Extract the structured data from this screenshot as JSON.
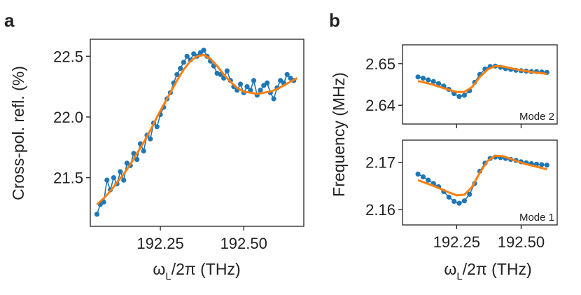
{
  "chart_data": [
    {
      "panel": "a",
      "type": "line",
      "xlabel_main": "ω",
      "xlabel_sub": "L",
      "xlabel_rest": "/2π (THz)",
      "ylabel": "Cross-pol. refl. (%)",
      "xlim": [
        192.04,
        192.68
      ],
      "ylim": [
        21.1,
        22.64
      ],
      "xticks": [
        192.25,
        192.5
      ],
      "xtick_labels": [
        "192.25",
        "192.50"
      ],
      "yticks": [
        21.5,
        22.0,
        22.5
      ],
      "ytick_labels": [
        "21.5",
        "22.0",
        "22.5"
      ],
      "series": [
        {
          "kind": "data",
          "color": "#1f77b4",
          "x": [
            192.06,
            192.07,
            192.08,
            192.09,
            192.1,
            192.11,
            192.12,
            192.13,
            192.14,
            192.15,
            192.16,
            192.17,
            192.18,
            192.19,
            192.2,
            192.21,
            192.22,
            192.23,
            192.24,
            192.25,
            192.26,
            192.27,
            192.28,
            192.29,
            192.3,
            192.31,
            192.32,
            192.33,
            192.34,
            192.35,
            192.36,
            192.37,
            192.38,
            192.39,
            192.4,
            192.41,
            192.42,
            192.43,
            192.44,
            192.45,
            192.46,
            192.47,
            192.48,
            192.49,
            192.5,
            192.51,
            192.52,
            192.53,
            192.54,
            192.55,
            192.56,
            192.57,
            192.58,
            192.59,
            192.6,
            192.61,
            192.62,
            192.63,
            192.64,
            192.65
          ],
          "y": [
            21.2,
            21.28,
            21.3,
            21.48,
            21.4,
            21.5,
            21.45,
            21.55,
            21.48,
            21.62,
            21.6,
            21.7,
            21.65,
            21.78,
            21.72,
            21.85,
            21.82,
            21.95,
            21.92,
            22.02,
            22.08,
            22.15,
            22.2,
            22.28,
            22.35,
            22.4,
            22.45,
            22.5,
            22.47,
            22.52,
            22.5,
            22.53,
            22.55,
            22.5,
            22.46,
            22.42,
            22.36,
            22.35,
            22.32,
            22.38,
            22.3,
            22.25,
            22.22,
            22.27,
            22.2,
            22.25,
            22.22,
            22.3,
            22.18,
            22.22,
            22.26,
            22.28,
            22.2,
            22.15,
            22.24,
            22.3,
            22.28,
            22.35,
            22.32,
            22.3
          ]
        },
        {
          "kind": "fit",
          "color": "#ff7f0e",
          "x": [
            192.06,
            192.08,
            192.1,
            192.12,
            192.14,
            192.16,
            192.18,
            192.2,
            192.22,
            192.24,
            192.26,
            192.28,
            192.3,
            192.32,
            192.34,
            192.36,
            192.38,
            192.4,
            192.42,
            192.44,
            192.46,
            192.48,
            192.5,
            192.52,
            192.54,
            192.56,
            192.58,
            192.6,
            192.62,
            192.64,
            192.66
          ],
          "y": [
            21.28,
            21.33,
            21.39,
            21.46,
            21.53,
            21.61,
            21.7,
            21.79,
            21.89,
            22.0,
            22.1,
            22.2,
            22.3,
            22.39,
            22.46,
            22.5,
            22.51,
            22.48,
            22.42,
            22.35,
            22.29,
            22.24,
            22.21,
            22.2,
            22.19,
            22.2,
            22.21,
            22.23,
            22.26,
            22.29,
            22.32
          ]
        }
      ]
    },
    {
      "panel": "b",
      "subplot": "top",
      "type": "line",
      "annotation": "Mode 2",
      "ylim": [
        2.6355,
        2.6545
      ],
      "xlim": [
        192.04,
        192.64
      ],
      "yticks": [
        2.64,
        2.65
      ],
      "ytick_labels": [
        "2.64",
        "2.65"
      ],
      "series": [
        {
          "kind": "data",
          "color": "#1f77b4",
          "x": [
            192.1,
            192.12,
            192.14,
            192.16,
            192.18,
            192.2,
            192.22,
            192.24,
            192.26,
            192.28,
            192.3,
            192.32,
            192.34,
            192.36,
            192.38,
            192.4,
            192.42,
            192.44,
            192.46,
            192.48,
            192.5,
            192.52,
            192.54,
            192.56,
            192.58,
            192.6
          ],
          "y": [
            2.6468,
            2.6465,
            2.6461,
            2.6457,
            2.6452,
            2.6446,
            2.6438,
            2.6428,
            2.6421,
            2.6424,
            2.6435,
            2.6455,
            2.6474,
            2.6487,
            2.6493,
            2.6494,
            2.6491,
            2.6488,
            2.6486,
            2.6484,
            2.6483,
            2.6482,
            2.6481,
            2.6481,
            2.648,
            2.6479
          ]
        },
        {
          "kind": "fit",
          "color": "#ff7f0e",
          "x": [
            192.1,
            192.13,
            192.16,
            192.19,
            192.22,
            192.25,
            192.28,
            192.31,
            192.34,
            192.37,
            192.4,
            192.43,
            192.46,
            192.49,
            192.52,
            192.55,
            192.58,
            192.6
          ],
          "y": [
            2.6458,
            2.6454,
            2.6449,
            2.6443,
            2.6437,
            2.6432,
            2.6432,
            2.6444,
            2.6468,
            2.6486,
            2.6494,
            2.6493,
            2.6489,
            2.6485,
            2.6482,
            2.6479,
            2.6477,
            2.6475
          ]
        }
      ]
    },
    {
      "panel": "b",
      "subplot": "bottom",
      "type": "line",
      "annotation": "Mode 1",
      "xlabel_main": "ω",
      "xlabel_sub": "L",
      "xlabel_rest": "/2π (THz)",
      "ylabel": "Frequency (MHz)",
      "ylim": [
        2.1567,
        2.1747
      ],
      "xlim": [
        192.04,
        192.64
      ],
      "xticks": [
        192.25,
        192.5
      ],
      "xtick_labels": [
        "192.25",
        "192.50"
      ],
      "yticks": [
        2.16,
        2.17
      ],
      "ytick_labels": [
        "2.16",
        "2.17"
      ],
      "series": [
        {
          "kind": "data",
          "color": "#1f77b4",
          "x": [
            192.1,
            192.12,
            192.14,
            192.16,
            192.18,
            192.2,
            192.22,
            192.24,
            192.26,
            192.28,
            192.3,
            192.32,
            192.34,
            192.36,
            192.38,
            192.4,
            192.42,
            192.44,
            192.46,
            192.48,
            192.5,
            192.52,
            192.54,
            192.56,
            192.58,
            192.6
          ],
          "y": [
            2.1675,
            2.1669,
            2.1662,
            2.1655,
            2.1648,
            2.1638,
            2.1626,
            2.1617,
            2.1613,
            2.1618,
            2.1632,
            2.1655,
            2.1681,
            2.1698,
            2.1708,
            2.1711,
            2.171,
            2.1708,
            2.1706,
            2.1704,
            2.1701,
            2.1699,
            2.1697,
            2.1696,
            2.1695,
            2.1694
          ]
        },
        {
          "kind": "fit",
          "color": "#ff7f0e",
          "x": [
            192.1,
            192.13,
            192.16,
            192.19,
            192.22,
            192.25,
            192.28,
            192.31,
            192.34,
            192.37,
            192.4,
            192.43,
            192.46,
            192.49,
            192.52,
            192.55,
            192.58,
            192.6
          ],
          "y": [
            2.1662,
            2.1656,
            2.165,
            2.1643,
            2.1636,
            2.163,
            2.1631,
            2.1648,
            2.1678,
            2.1703,
            2.1714,
            2.1713,
            2.1707,
            2.1701,
            2.1696,
            2.1692,
            2.1688,
            2.1685
          ]
        }
      ]
    }
  ]
}
